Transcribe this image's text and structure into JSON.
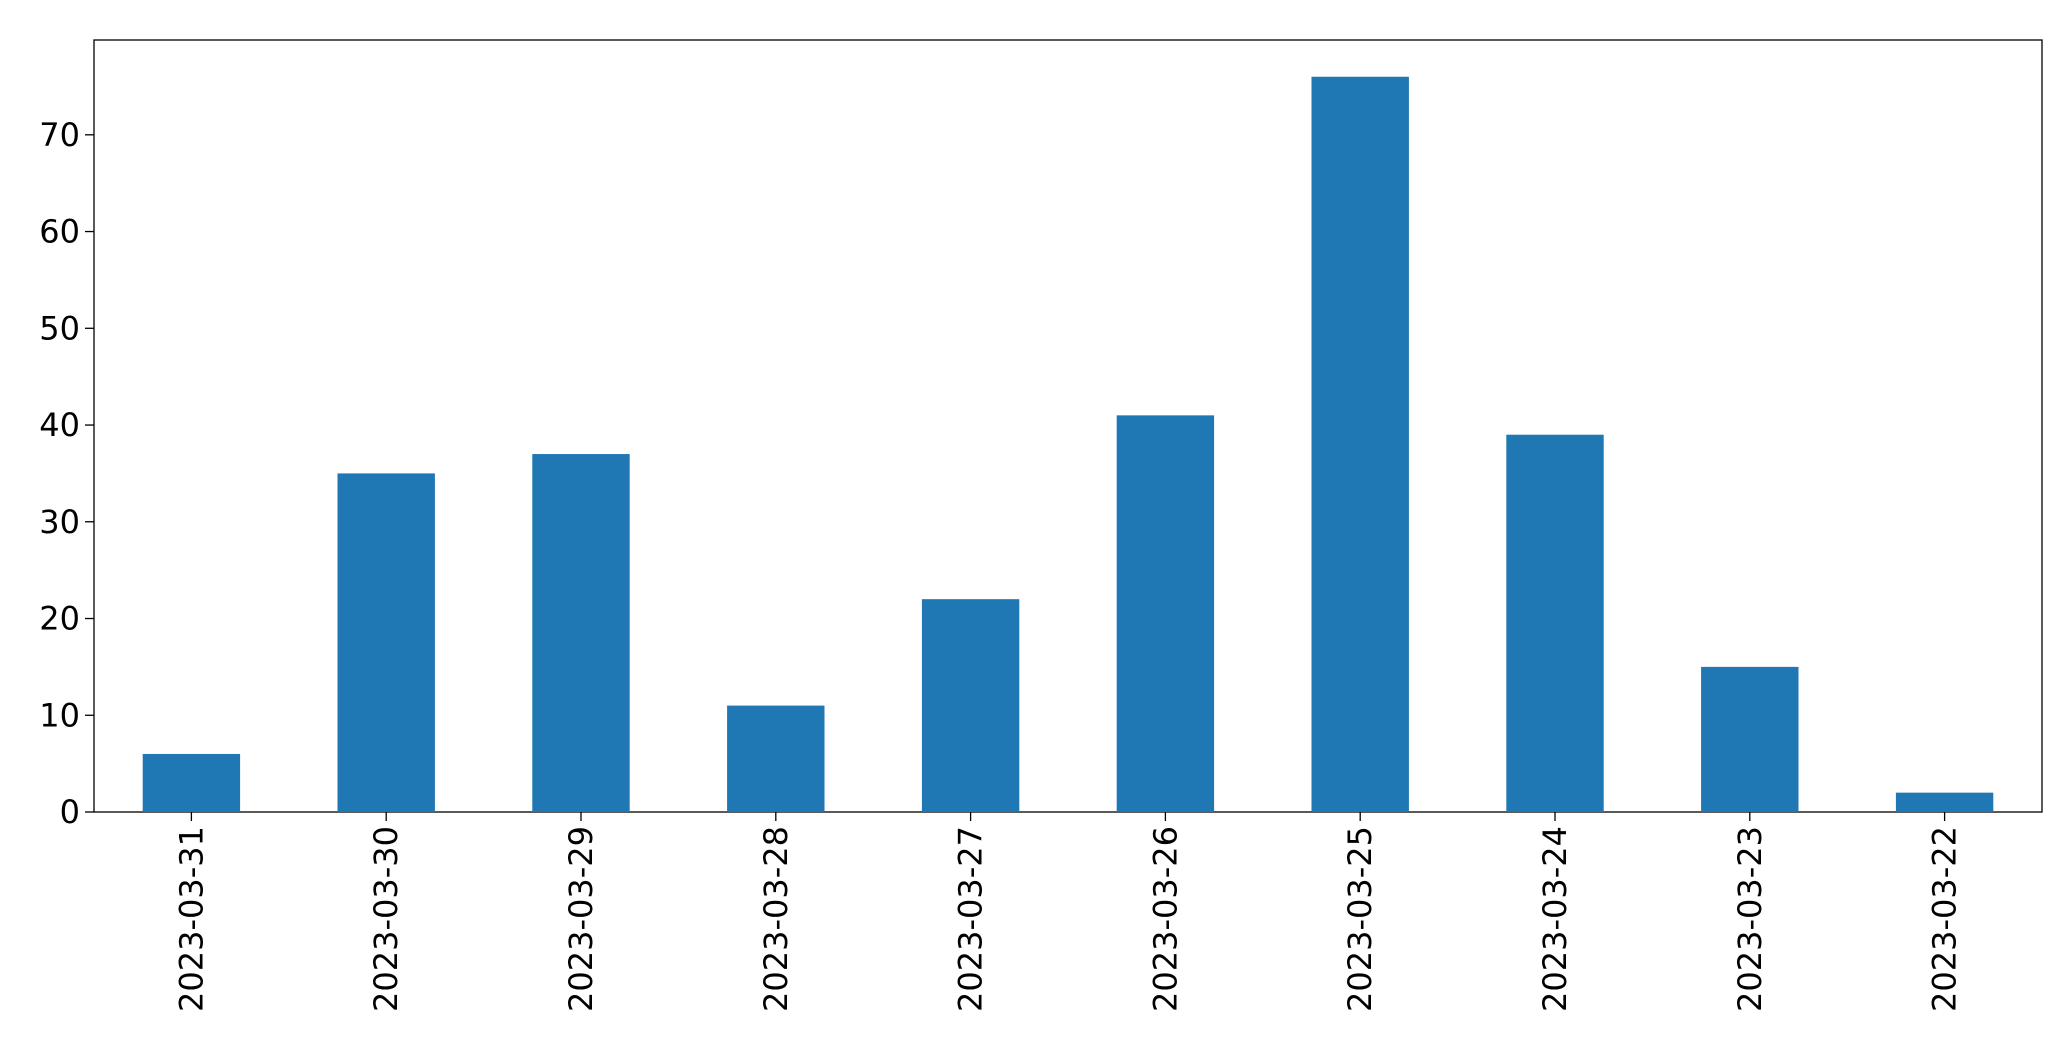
{
  "chart_data": {
    "type": "bar",
    "categories": [
      "2023-03-31",
      "2023-03-30",
      "2023-03-29",
      "2023-03-28",
      "2023-03-27",
      "2023-03-26",
      "2023-03-25",
      "2023-03-24",
      "2023-03-23",
      "2023-03-22"
    ],
    "values": [
      6,
      35,
      37,
      11,
      22,
      41,
      76,
      39,
      15,
      2
    ],
    "color": "#1f77b4",
    "ylim": [
      0,
      79.8
    ],
    "yticks": [
      0,
      10,
      20,
      30,
      40,
      50,
      60,
      70
    ],
    "grid": false
  }
}
